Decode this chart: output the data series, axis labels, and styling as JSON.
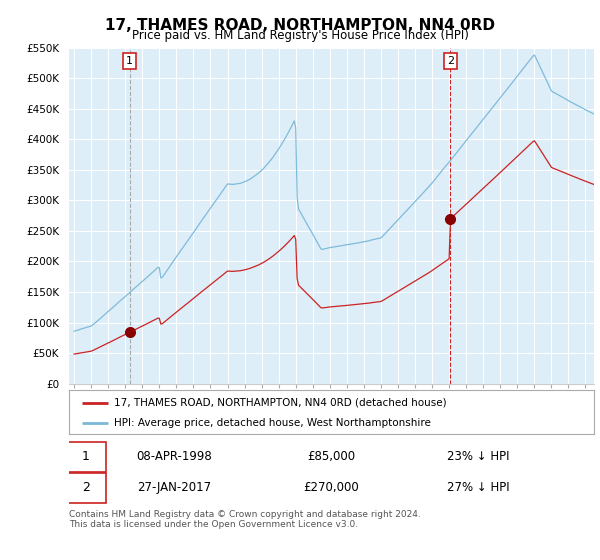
{
  "title": "17, THAMES ROAD, NORTHAMPTON, NN4 0RD",
  "subtitle": "Price paid vs. HM Land Registry's House Price Index (HPI)",
  "hpi_label": "HPI: Average price, detached house, West Northamptonshire",
  "property_label": "17, THAMES ROAD, NORTHAMPTON, NN4 0RD (detached house)",
  "transaction1_date": "08-APR-1998",
  "transaction1_price": "£85,000",
  "transaction1_hpi": "23% ↓ HPI",
  "transaction2_date": "27-JAN-2017",
  "transaction2_price": "£270,000",
  "transaction2_hpi": "27% ↓ HPI",
  "footer": "Contains HM Land Registry data © Crown copyright and database right 2024.\nThis data is licensed under the Open Government Licence v3.0.",
  "hpi_color": "#7ab8d8",
  "property_color": "#cc2222",
  "vline1_color": "#aaaaaa",
  "vline2_color": "#cc2222",
  "marker_color": "#880000",
  "background_color": "#ffffff",
  "chart_bg_color": "#ddeef8",
  "grid_color": "#ffffff",
  "ylim": [
    0,
    550000
  ],
  "yticks": [
    0,
    50000,
    100000,
    150000,
    200000,
    250000,
    300000,
    350000,
    400000,
    450000,
    500000,
    550000
  ],
  "transaction1_year": 1998.25,
  "transaction1_value": 85000,
  "transaction2_year": 2017.07,
  "transaction2_value": 270000,
  "xmin": 1995.0,
  "xmax": 2025.5
}
